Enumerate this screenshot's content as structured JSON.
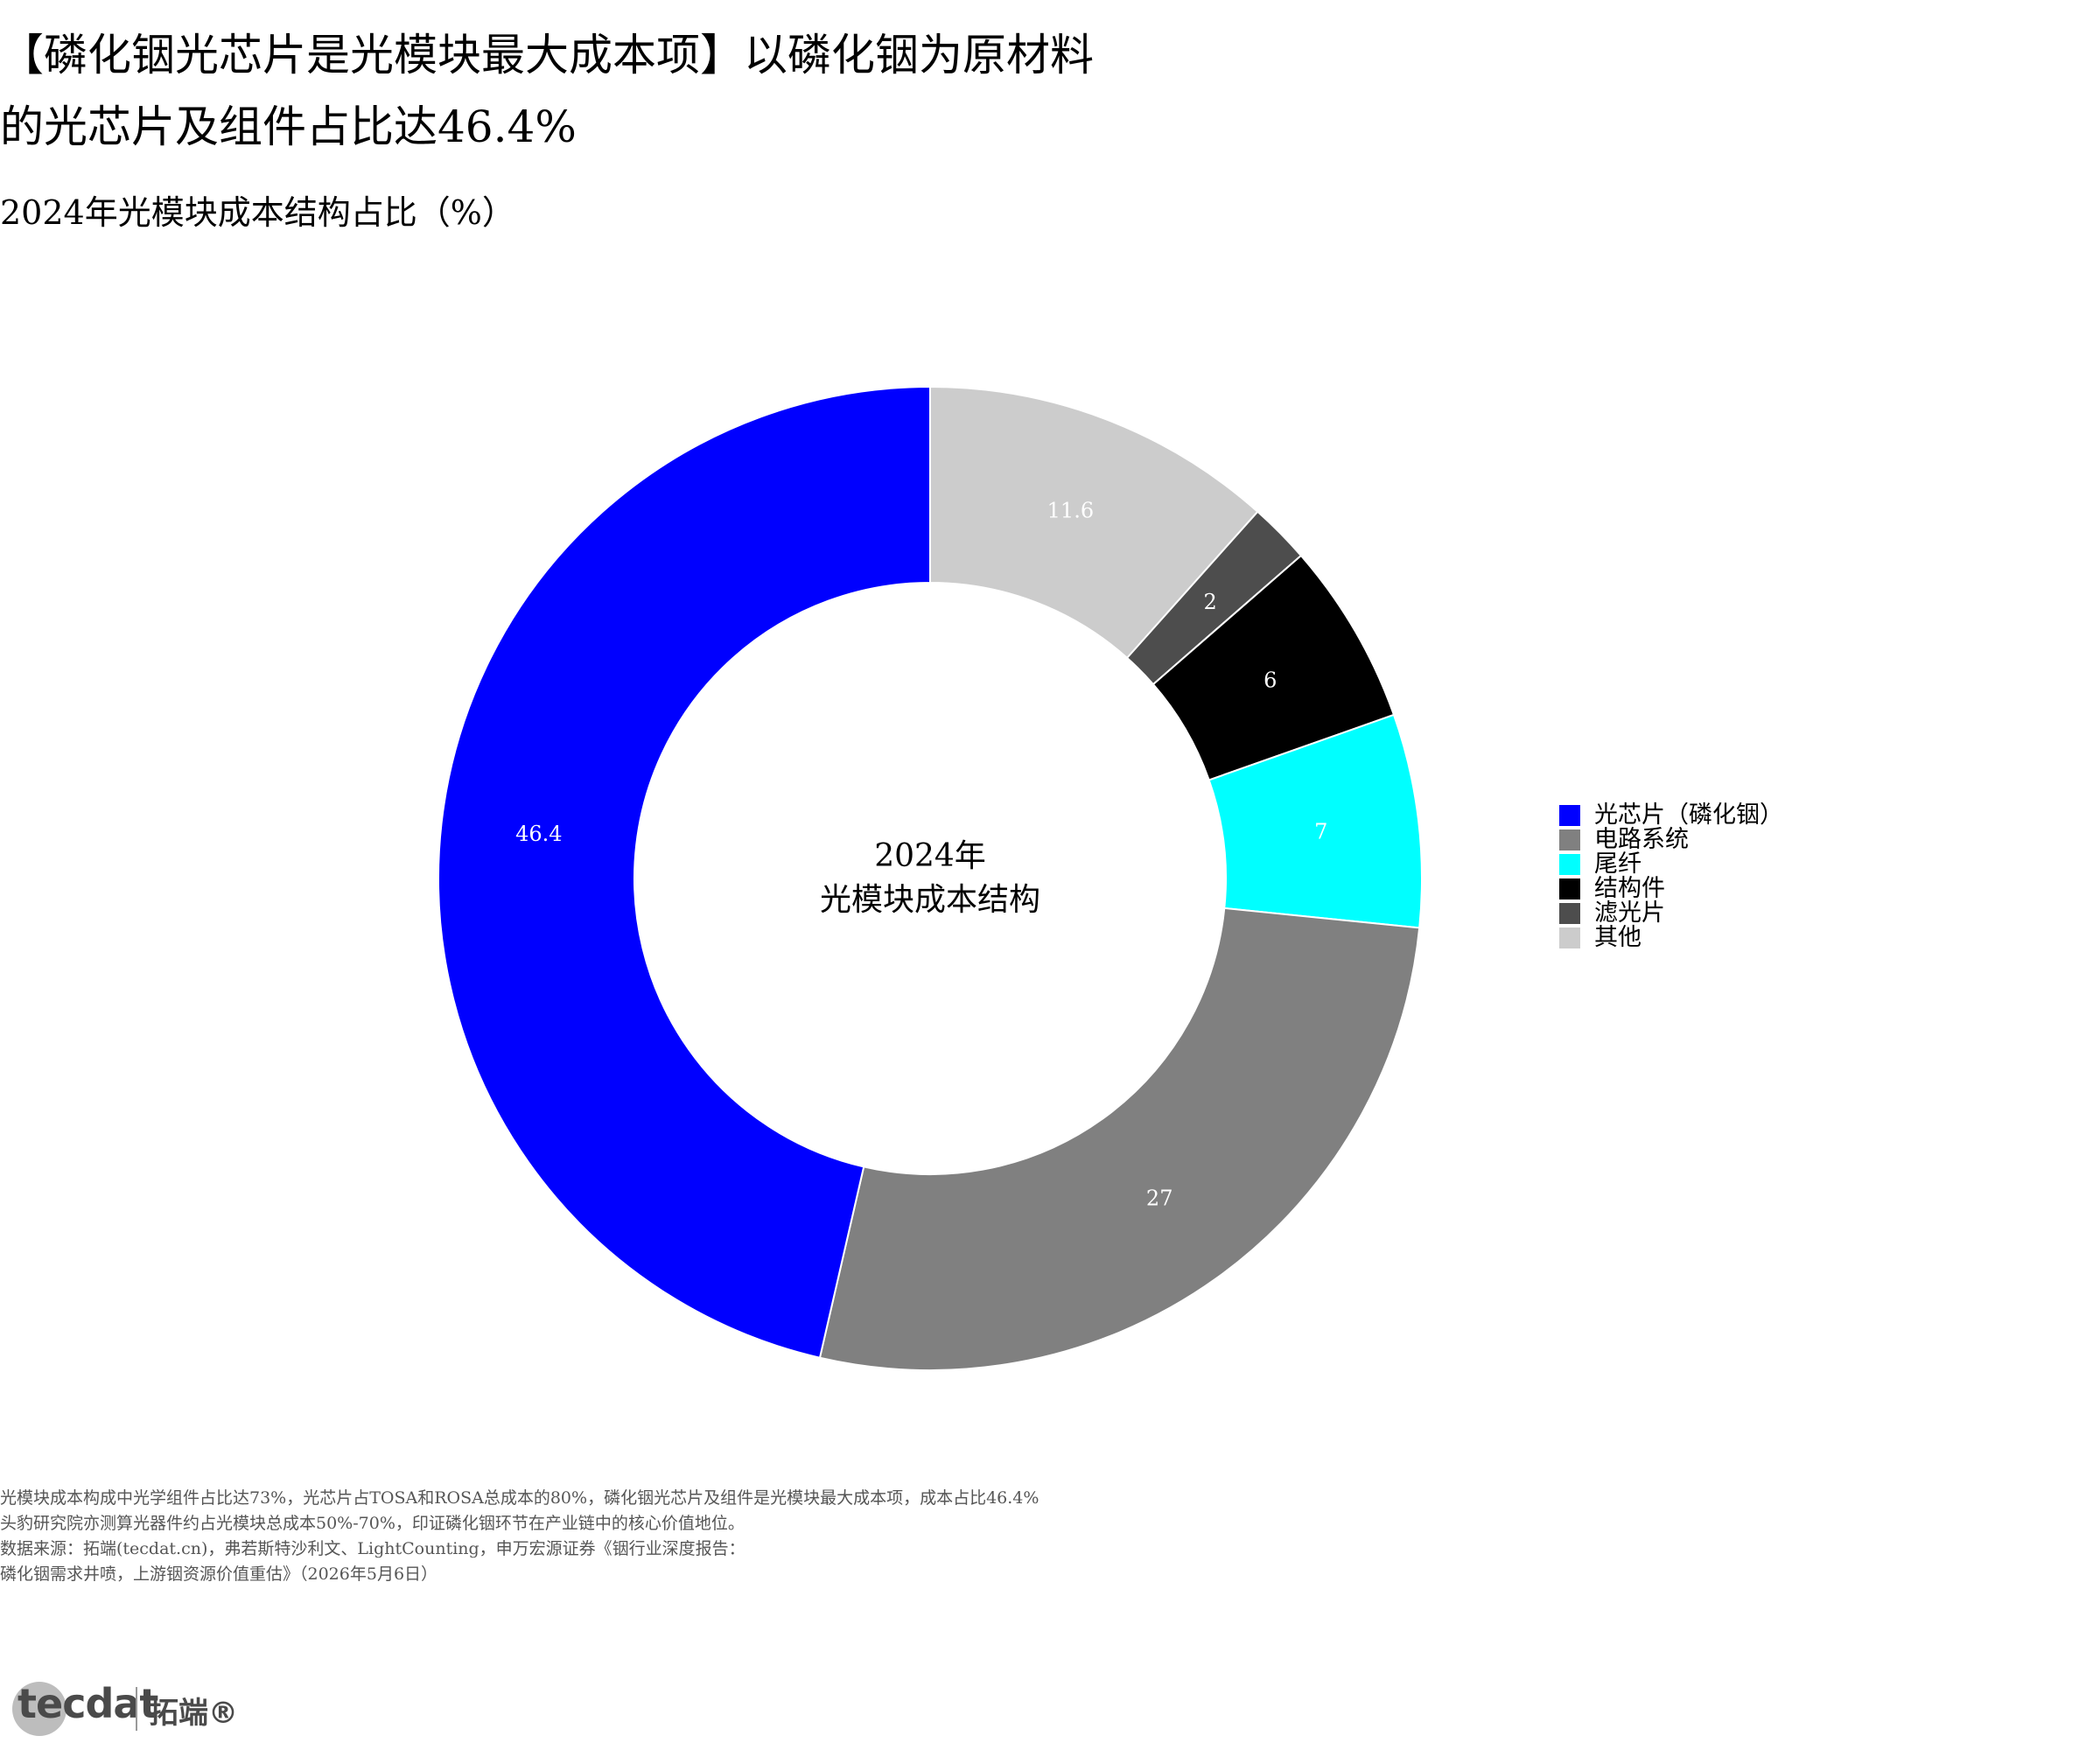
{
  "title_lines": [
    "【磷化铟光芯片是光模块最大成本项】以磷化铟为原材料",
    "的光芯片及组件占比达46.4%"
  ],
  "subtitle": "2024年光模块成本结构占比（%）",
  "center_label": [
    "2024年",
    "光模块成本结构"
  ],
  "chart_data": {
    "type": "pie",
    "donut": true,
    "title": "2024年光模块成本结构占比（%）",
    "slices": [
      {
        "name": "其他",
        "value": 11.6,
        "color": "#cccccc",
        "label": "11.6"
      },
      {
        "name": "滤光片",
        "value": 2,
        "color": "#4d4d4d",
        "label": "2"
      },
      {
        "name": "结构件",
        "value": 6,
        "color": "#000000",
        "label": "6"
      },
      {
        "name": "尾纤",
        "value": 7,
        "color": "#00ffff",
        "label": "7"
      },
      {
        "name": "电路系统",
        "value": 27,
        "color": "#808080",
        "label": "27"
      },
      {
        "name": "光芯片（磷化铟）",
        "value": 46.4,
        "color": "#0000ff",
        "label": "46.4"
      }
    ],
    "legend_order": [
      "光芯片（磷化铟）",
      "电路系统",
      "尾纤",
      "结构件",
      "滤光片",
      "其他"
    ],
    "legend_placement": "right"
  },
  "notes": [
    "光模块成本构成中光学组件占比达73%，光芯片占TOSA和ROSA总成本的80%，磷化铟光芯片及组件是光模块最大成本项，成本占比46.4%",
    "头豹研究院亦测算光器件约占光模块总成本50%-70%，印证磷化铟环节在产业链中的核心价值地位。",
    "数据来源：拓端(tecdat.cn)，弗若斯特沙利文、LightCounting，申万宏源证券《铟行业深度报告：",
    "磷化铟需求井喷，上游铟资源价值重估》（2026年5月6日）"
  ],
  "logo": {
    "text": "tecdat",
    "cn": "拓端®"
  }
}
